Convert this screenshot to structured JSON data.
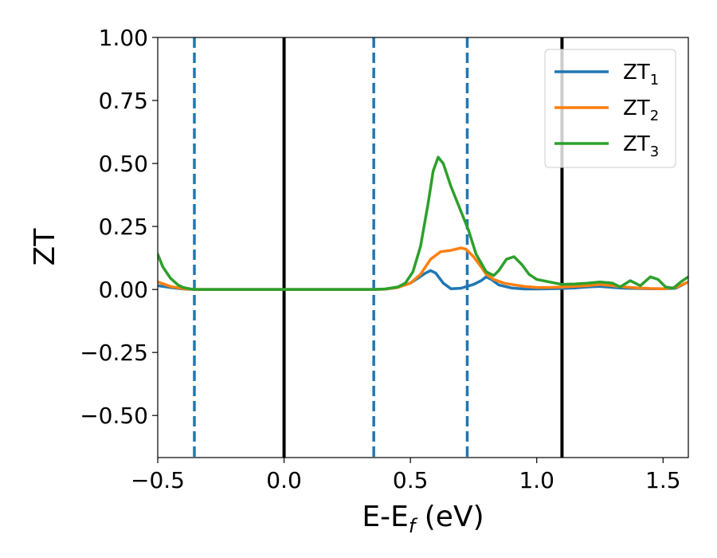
{
  "chart_data": {
    "type": "line",
    "xlabel_main": "E-E",
    "xlabel_sub": "f",
    "xlabel_tail": " (eV)",
    "ylabel": "ZT",
    "xlim": [
      -0.5,
      1.6
    ],
    "ylim": [
      -0.667,
      1.0
    ],
    "xticks": [
      -0.5,
      0.0,
      0.5,
      1.0,
      1.5
    ],
    "xtick_labels": [
      "−0.5",
      "0.0",
      "0.5",
      "1.0",
      "1.5"
    ],
    "yticks": [
      -0.5,
      -0.25,
      0.0,
      0.25,
      0.5,
      0.75,
      1.0
    ],
    "ytick_labels": [
      "−0.50",
      "−0.25",
      "0.00",
      "0.25",
      "0.50",
      "0.75",
      "1.00"
    ],
    "grid": false,
    "legend_position": "top-right",
    "vertical_lines": [
      {
        "x": -0.355,
        "style": "dashed",
        "color": "#1f77b4"
      },
      {
        "x": 0.0,
        "style": "solid",
        "color": "#000000"
      },
      {
        "x": 0.355,
        "style": "dashed",
        "color": "#1f77b4"
      },
      {
        "x": 0.725,
        "style": "dashed",
        "color": "#1f77b4"
      },
      {
        "x": 1.1,
        "style": "solid",
        "color": "#000000"
      }
    ],
    "series": [
      {
        "name": "ZT",
        "name_sub": "1",
        "color": "#1f77b4",
        "x": [
          -0.5,
          -0.45,
          -0.4,
          -0.35,
          0.0,
          0.35,
          0.4,
          0.45,
          0.5,
          0.53,
          0.56,
          0.58,
          0.6,
          0.63,
          0.66,
          0.7,
          0.75,
          0.78,
          0.8,
          0.82,
          0.85,
          0.9,
          0.95,
          1.0,
          1.05,
          1.1,
          1.15,
          1.2,
          1.25,
          1.3,
          1.35,
          1.4,
          1.45,
          1.5,
          1.55,
          1.6
        ],
        "values": [
          0.015,
          0.008,
          0.002,
          0.0,
          0.0,
          0.0,
          0.001,
          0.008,
          0.025,
          0.045,
          0.065,
          0.075,
          0.065,
          0.025,
          0.003,
          0.005,
          0.02,
          0.035,
          0.05,
          0.04,
          0.018,
          0.006,
          0.002,
          0.002,
          0.003,
          0.004,
          0.006,
          0.01,
          0.012,
          0.008,
          0.005,
          0.004,
          0.003,
          0.003,
          0.005,
          0.03
        ]
      },
      {
        "name": "ZT",
        "name_sub": "2",
        "color": "#ff7f0e",
        "x": [
          -0.5,
          -0.45,
          -0.4,
          -0.35,
          0.0,
          0.35,
          0.4,
          0.45,
          0.5,
          0.54,
          0.58,
          0.62,
          0.66,
          0.7,
          0.72,
          0.75,
          0.78,
          0.8,
          0.83,
          0.87,
          0.9,
          0.95,
          1.0,
          1.05,
          1.1,
          1.15,
          1.2,
          1.25,
          1.3,
          1.35,
          1.4,
          1.45,
          1.5,
          1.55,
          1.6
        ],
        "values": [
          0.03,
          0.012,
          0.003,
          0.0,
          0.0,
          0.0,
          0.001,
          0.008,
          0.025,
          0.06,
          0.12,
          0.15,
          0.155,
          0.165,
          0.16,
          0.13,
          0.09,
          0.06,
          0.04,
          0.025,
          0.02,
          0.012,
          0.008,
          0.008,
          0.01,
          0.012,
          0.015,
          0.02,
          0.015,
          0.01,
          0.006,
          0.004,
          0.003,
          0.008,
          0.03
        ]
      },
      {
        "name": "ZT",
        "name_sub": "3",
        "color": "#2ca02c",
        "x": [
          -0.5,
          -0.48,
          -0.45,
          -0.42,
          -0.4,
          -0.37,
          -0.35,
          0.0,
          0.35,
          0.4,
          0.45,
          0.48,
          0.51,
          0.54,
          0.57,
          0.59,
          0.61,
          0.63,
          0.66,
          0.7,
          0.73,
          0.76,
          0.8,
          0.83,
          0.85,
          0.88,
          0.91,
          0.94,
          0.97,
          1.0,
          1.05,
          1.1,
          1.15,
          1.2,
          1.25,
          1.3,
          1.33,
          1.37,
          1.41,
          1.45,
          1.48,
          1.51,
          1.54,
          1.57,
          1.6
        ],
        "values": [
          0.14,
          0.09,
          0.045,
          0.018,
          0.008,
          0.002,
          0.0,
          0.0,
          0.0,
          0.002,
          0.01,
          0.025,
          0.07,
          0.17,
          0.34,
          0.47,
          0.525,
          0.5,
          0.41,
          0.31,
          0.235,
          0.14,
          0.07,
          0.055,
          0.075,
          0.12,
          0.13,
          0.1,
          0.06,
          0.04,
          0.03,
          0.02,
          0.022,
          0.025,
          0.03,
          0.025,
          0.01,
          0.035,
          0.015,
          0.05,
          0.04,
          0.01,
          0.005,
          0.03,
          0.05
        ]
      }
    ]
  }
}
